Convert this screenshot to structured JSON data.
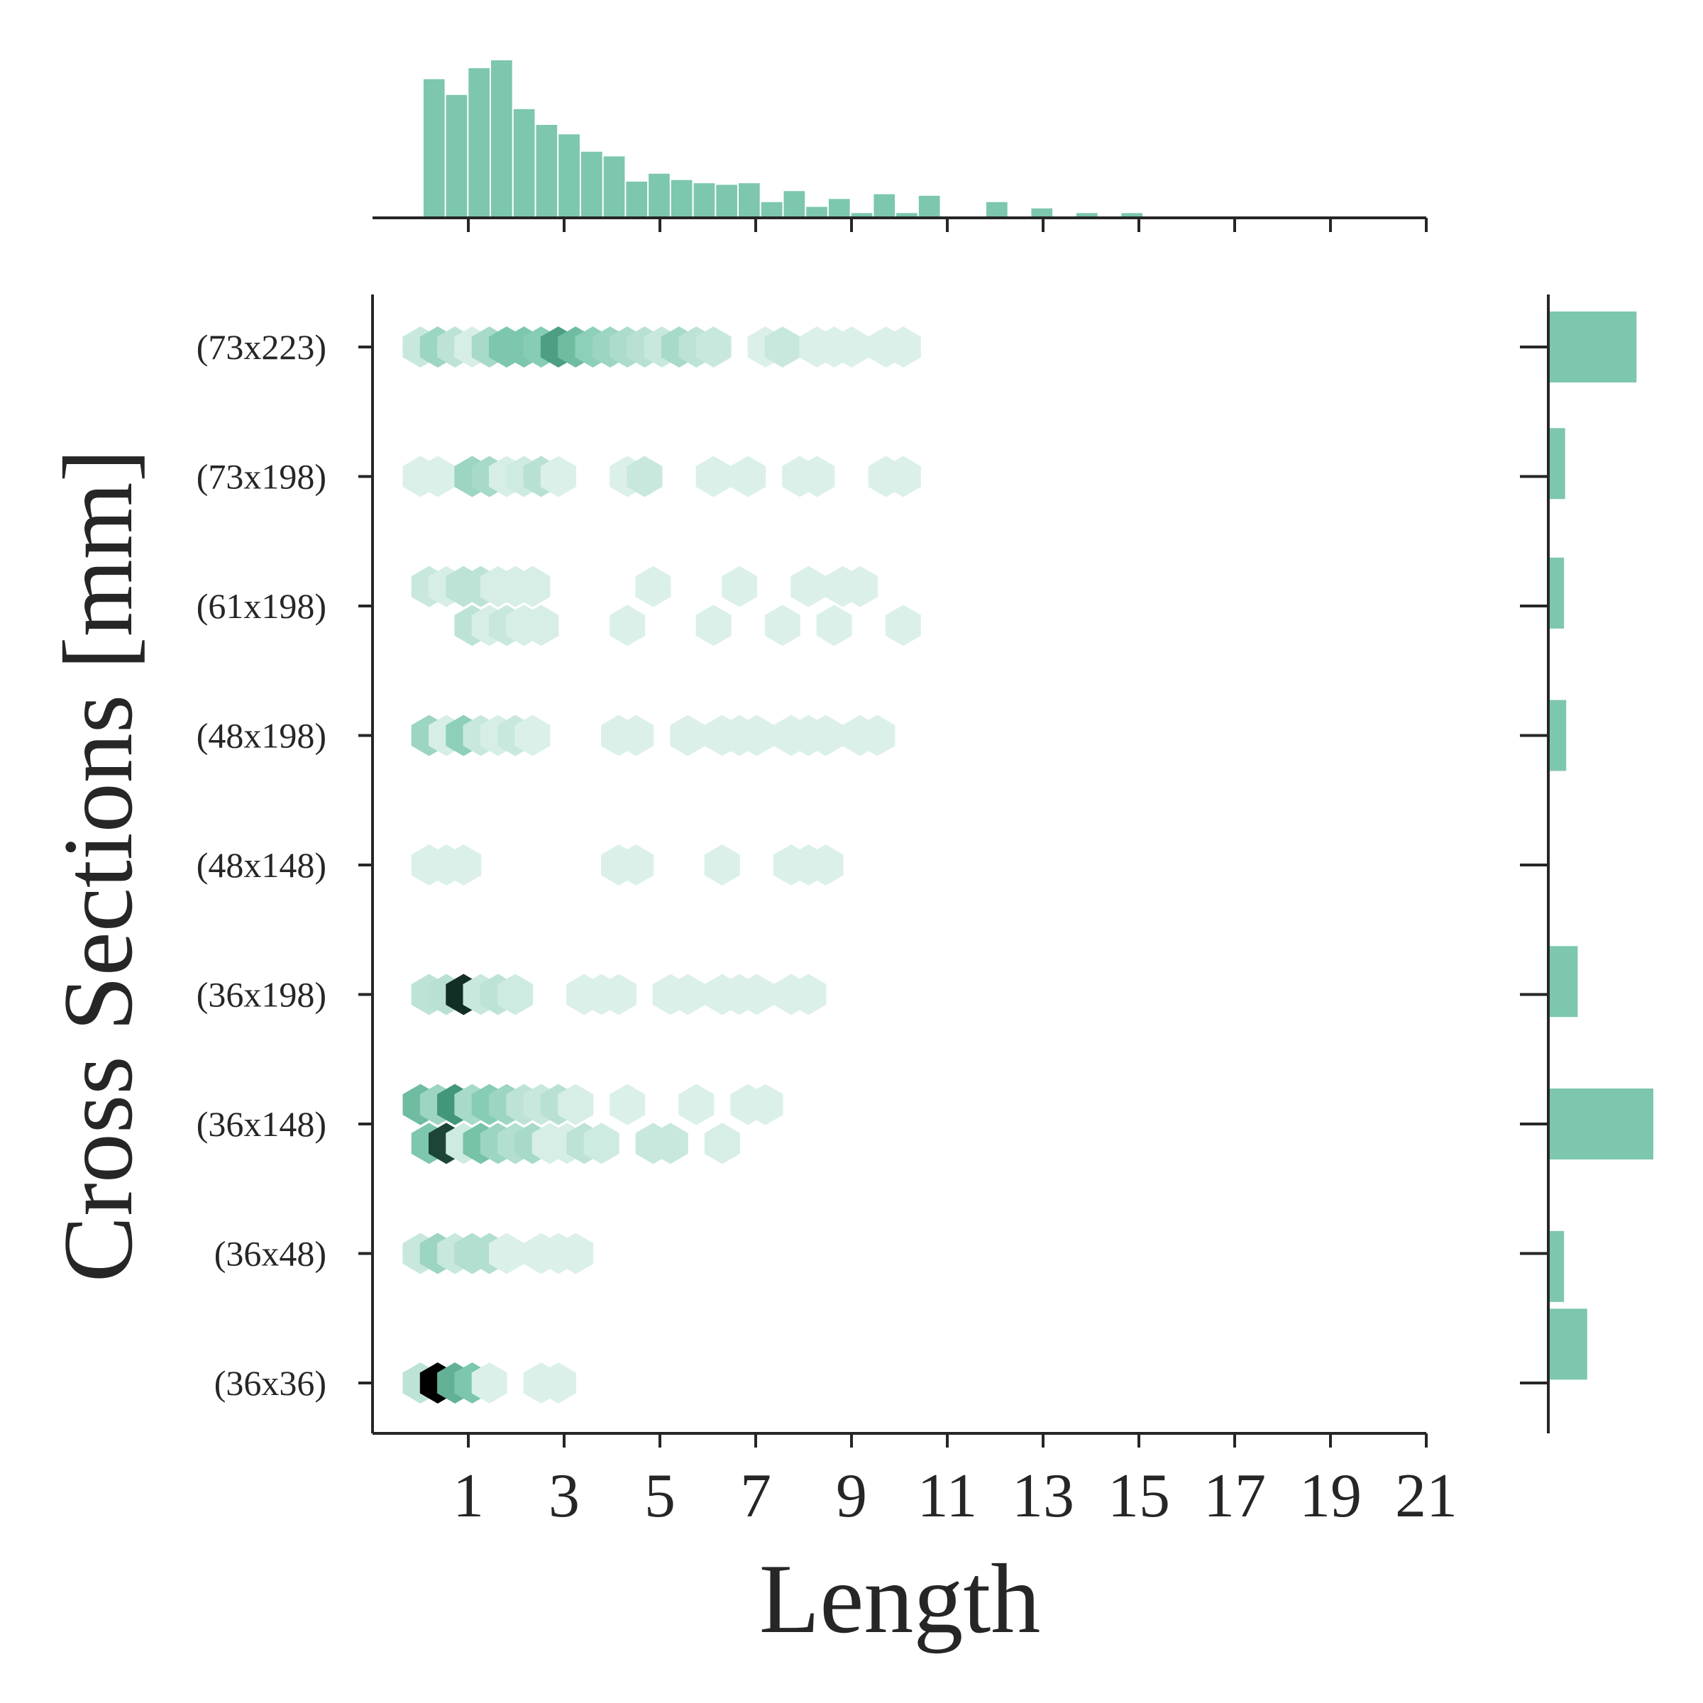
{
  "chart_data": {
    "type": "hexbin_joint",
    "xlabel": "Length",
    "ylabel": "Cross Sections [mm]",
    "xlim": [
      -1.0,
      21.0
    ],
    "x_ticks": [
      1,
      3,
      5,
      7,
      9,
      11,
      13,
      15,
      17,
      19,
      21
    ],
    "y_categories": [
      "(36x36)",
      "(36x48)",
      "(36x148)",
      "(36x198)",
      "(48x148)",
      "(48x198)",
      "(61x198)",
      "(73x198)",
      "(73x223)"
    ],
    "palette": {
      "light": "#e8f6f1",
      "mid": "#7cc7ad",
      "dark_green": "#3a8f72",
      "max": "#000000"
    },
    "cells": [
      {
        "x": 0.0,
        "y": 8.0,
        "d": 0.15
      },
      {
        "x": 0.36,
        "y": 8.0,
        "d": 0.35
      },
      {
        "x": 0.72,
        "y": 8.0,
        "d": 0.2
      },
      {
        "x": 1.08,
        "y": 8.0,
        "d": 0.08
      },
      {
        "x": 1.44,
        "y": 8.0,
        "d": 0.3
      },
      {
        "x": 1.8,
        "y": 8.0,
        "d": 0.5
      },
      {
        "x": 2.16,
        "y": 8.0,
        "d": 0.5
      },
      {
        "x": 2.52,
        "y": 8.0,
        "d": 0.45
      },
      {
        "x": 2.88,
        "y": 8.0,
        "d": 0.68
      },
      {
        "x": 3.24,
        "y": 8.0,
        "d": 0.55
      },
      {
        "x": 3.6,
        "y": 8.0,
        "d": 0.42
      },
      {
        "x": 3.96,
        "y": 8.0,
        "d": 0.35
      },
      {
        "x": 4.32,
        "y": 8.0,
        "d": 0.28
      },
      {
        "x": 4.68,
        "y": 8.0,
        "d": 0.22
      },
      {
        "x": 5.04,
        "y": 8.0,
        "d": 0.15
      },
      {
        "x": 5.4,
        "y": 8.0,
        "d": 0.3
      },
      {
        "x": 5.76,
        "y": 8.0,
        "d": 0.2
      },
      {
        "x": 6.12,
        "y": 8.0,
        "d": 0.15
      },
      {
        "x": 7.2,
        "y": 8.0,
        "d": 0.06
      },
      {
        "x": 7.56,
        "y": 8.0,
        "d": 0.15
      },
      {
        "x": 8.28,
        "y": 8.0,
        "d": 0.06
      },
      {
        "x": 8.64,
        "y": 8.0,
        "d": 0.06
      },
      {
        "x": 9.0,
        "y": 8.0,
        "d": 0.06
      },
      {
        "x": 9.72,
        "y": 8.0,
        "d": 0.06
      },
      {
        "x": 10.08,
        "y": 8.0,
        "d": 0.06
      },
      {
        "x": 0.0,
        "y": 7.0,
        "d": 0.06
      },
      {
        "x": 0.36,
        "y": 7.0,
        "d": 0.06
      },
      {
        "x": 1.08,
        "y": 7.0,
        "d": 0.35
      },
      {
        "x": 1.44,
        "y": 7.0,
        "d": 0.3
      },
      {
        "x": 1.8,
        "y": 7.0,
        "d": 0.08
      },
      {
        "x": 2.16,
        "y": 7.0,
        "d": 0.12
      },
      {
        "x": 2.52,
        "y": 7.0,
        "d": 0.22
      },
      {
        "x": 2.88,
        "y": 7.0,
        "d": 0.06
      },
      {
        "x": 4.32,
        "y": 7.0,
        "d": 0.06
      },
      {
        "x": 4.68,
        "y": 7.0,
        "d": 0.15
      },
      {
        "x": 6.12,
        "y": 7.0,
        "d": 0.06
      },
      {
        "x": 6.84,
        "y": 7.0,
        "d": 0.06
      },
      {
        "x": 7.92,
        "y": 7.0,
        "d": 0.06
      },
      {
        "x": 8.28,
        "y": 7.0,
        "d": 0.06
      },
      {
        "x": 9.72,
        "y": 7.0,
        "d": 0.06
      },
      {
        "x": 10.08,
        "y": 7.0,
        "d": 0.06
      },
      {
        "x": 0.18,
        "y": 6.15,
        "d": 0.15
      },
      {
        "x": 0.54,
        "y": 6.15,
        "d": 0.08
      },
      {
        "x": 0.9,
        "y": 6.15,
        "d": 0.2
      },
      {
        "x": 1.26,
        "y": 6.15,
        "d": 0.2
      },
      {
        "x": 1.62,
        "y": 6.15,
        "d": 0.08
      },
      {
        "x": 1.98,
        "y": 6.15,
        "d": 0.08
      },
      {
        "x": 2.34,
        "y": 6.15,
        "d": 0.08
      },
      {
        "x": 4.86,
        "y": 6.15,
        "d": 0.06
      },
      {
        "x": 6.66,
        "y": 6.15,
        "d": 0.06
      },
      {
        "x": 8.1,
        "y": 6.15,
        "d": 0.06
      },
      {
        "x": 8.82,
        "y": 6.15,
        "d": 0.06
      },
      {
        "x": 9.18,
        "y": 6.15,
        "d": 0.06
      },
      {
        "x": 1.08,
        "y": 5.85,
        "d": 0.2
      },
      {
        "x": 1.44,
        "y": 5.85,
        "d": 0.08
      },
      {
        "x": 1.8,
        "y": 5.85,
        "d": 0.15
      },
      {
        "x": 2.16,
        "y": 5.85,
        "d": 0.08
      },
      {
        "x": 2.52,
        "y": 5.85,
        "d": 0.08
      },
      {
        "x": 4.32,
        "y": 5.85,
        "d": 0.06
      },
      {
        "x": 6.12,
        "y": 5.85,
        "d": 0.06
      },
      {
        "x": 7.56,
        "y": 5.85,
        "d": 0.06
      },
      {
        "x": 8.64,
        "y": 5.85,
        "d": 0.06
      },
      {
        "x": 10.08,
        "y": 5.85,
        "d": 0.06
      },
      {
        "x": 0.18,
        "y": 5.0,
        "d": 0.35
      },
      {
        "x": 0.54,
        "y": 5.0,
        "d": 0.08
      },
      {
        "x": 0.9,
        "y": 5.0,
        "d": 0.42
      },
      {
        "x": 1.26,
        "y": 5.0,
        "d": 0.15
      },
      {
        "x": 1.62,
        "y": 5.0,
        "d": 0.08
      },
      {
        "x": 1.98,
        "y": 5.0,
        "d": 0.15
      },
      {
        "x": 2.34,
        "y": 5.0,
        "d": 0.06
      },
      {
        "x": 4.14,
        "y": 5.0,
        "d": 0.06
      },
      {
        "x": 4.5,
        "y": 5.0,
        "d": 0.06
      },
      {
        "x": 5.58,
        "y": 5.0,
        "d": 0.06
      },
      {
        "x": 6.3,
        "y": 5.0,
        "d": 0.06
      },
      {
        "x": 6.66,
        "y": 5.0,
        "d": 0.06
      },
      {
        "x": 7.02,
        "y": 5.0,
        "d": 0.06
      },
      {
        "x": 7.74,
        "y": 5.0,
        "d": 0.06
      },
      {
        "x": 8.1,
        "y": 5.0,
        "d": 0.06
      },
      {
        "x": 8.46,
        "y": 5.0,
        "d": 0.06
      },
      {
        "x": 9.18,
        "y": 5.0,
        "d": 0.06
      },
      {
        "x": 9.54,
        "y": 5.0,
        "d": 0.06
      },
      {
        "x": 0.18,
        "y": 4.0,
        "d": 0.06
      },
      {
        "x": 0.54,
        "y": 4.0,
        "d": 0.06
      },
      {
        "x": 0.9,
        "y": 4.0,
        "d": 0.06
      },
      {
        "x": 4.14,
        "y": 4.0,
        "d": 0.06
      },
      {
        "x": 4.5,
        "y": 4.0,
        "d": 0.06
      },
      {
        "x": 6.3,
        "y": 4.0,
        "d": 0.06
      },
      {
        "x": 7.74,
        "y": 4.0,
        "d": 0.06
      },
      {
        "x": 8.1,
        "y": 4.0,
        "d": 0.06
      },
      {
        "x": 8.46,
        "y": 4.0,
        "d": 0.06
      },
      {
        "x": 0.18,
        "y": 3.0,
        "d": 0.2
      },
      {
        "x": 0.54,
        "y": 3.0,
        "d": 0.22
      },
      {
        "x": 0.9,
        "y": 3.0,
        "d": 0.92
      },
      {
        "x": 1.26,
        "y": 3.0,
        "d": 0.15
      },
      {
        "x": 1.62,
        "y": 3.0,
        "d": 0.2
      },
      {
        "x": 1.98,
        "y": 3.0,
        "d": 0.12
      },
      {
        "x": 3.42,
        "y": 3.0,
        "d": 0.06
      },
      {
        "x": 3.78,
        "y": 3.0,
        "d": 0.06
      },
      {
        "x": 4.14,
        "y": 3.0,
        "d": 0.06
      },
      {
        "x": 5.22,
        "y": 3.0,
        "d": 0.06
      },
      {
        "x": 5.58,
        "y": 3.0,
        "d": 0.06
      },
      {
        "x": 6.3,
        "y": 3.0,
        "d": 0.06
      },
      {
        "x": 6.66,
        "y": 3.0,
        "d": 0.06
      },
      {
        "x": 7.02,
        "y": 3.0,
        "d": 0.06
      },
      {
        "x": 7.74,
        "y": 3.0,
        "d": 0.06
      },
      {
        "x": 8.1,
        "y": 3.0,
        "d": 0.06
      },
      {
        "x": 0.0,
        "y": 2.15,
        "d": 0.55
      },
      {
        "x": 0.36,
        "y": 2.15,
        "d": 0.35
      },
      {
        "x": 0.72,
        "y": 2.15,
        "d": 0.72
      },
      {
        "x": 1.08,
        "y": 2.15,
        "d": 0.3
      },
      {
        "x": 1.44,
        "y": 2.15,
        "d": 0.45
      },
      {
        "x": 1.8,
        "y": 2.15,
        "d": 0.35
      },
      {
        "x": 2.16,
        "y": 2.15,
        "d": 0.2
      },
      {
        "x": 2.52,
        "y": 2.15,
        "d": 0.15
      },
      {
        "x": 2.88,
        "y": 2.15,
        "d": 0.22
      },
      {
        "x": 3.24,
        "y": 2.15,
        "d": 0.08
      },
      {
        "x": 4.32,
        "y": 2.15,
        "d": 0.06
      },
      {
        "x": 5.76,
        "y": 2.15,
        "d": 0.06
      },
      {
        "x": 6.84,
        "y": 2.15,
        "d": 0.06
      },
      {
        "x": 7.2,
        "y": 2.15,
        "d": 0.06
      },
      {
        "x": 0.18,
        "y": 1.85,
        "d": 0.5
      },
      {
        "x": 0.54,
        "y": 1.85,
        "d": 0.88
      },
      {
        "x": 0.9,
        "y": 1.85,
        "d": 0.12
      },
      {
        "x": 1.26,
        "y": 1.85,
        "d": 0.52
      },
      {
        "x": 1.62,
        "y": 1.85,
        "d": 0.35
      },
      {
        "x": 1.98,
        "y": 1.85,
        "d": 0.25
      },
      {
        "x": 2.34,
        "y": 1.85,
        "d": 0.3
      },
      {
        "x": 2.7,
        "y": 1.85,
        "d": 0.08
      },
      {
        "x": 3.06,
        "y": 1.85,
        "d": 0.08
      },
      {
        "x": 3.42,
        "y": 1.85,
        "d": 0.2
      },
      {
        "x": 3.78,
        "y": 1.85,
        "d": 0.12
      },
      {
        "x": 4.86,
        "y": 1.85,
        "d": 0.15
      },
      {
        "x": 5.22,
        "y": 1.85,
        "d": 0.15
      },
      {
        "x": 6.3,
        "y": 1.85,
        "d": 0.08
      },
      {
        "x": 0.0,
        "y": 1.0,
        "d": 0.15
      },
      {
        "x": 0.36,
        "y": 1.0,
        "d": 0.35
      },
      {
        "x": 0.72,
        "y": 1.0,
        "d": 0.15
      },
      {
        "x": 1.08,
        "y": 1.0,
        "d": 0.25
      },
      {
        "x": 1.44,
        "y": 1.0,
        "d": 0.25
      },
      {
        "x": 1.8,
        "y": 1.0,
        "d": 0.06
      },
      {
        "x": 2.52,
        "y": 1.0,
        "d": 0.06
      },
      {
        "x": 2.88,
        "y": 1.0,
        "d": 0.06
      },
      {
        "x": 3.24,
        "y": 1.0,
        "d": 0.06
      },
      {
        "x": 0.0,
        "y": 0.0,
        "d": 0.2
      },
      {
        "x": 0.36,
        "y": 0.0,
        "d": 1.0
      },
      {
        "x": 0.72,
        "y": 0.0,
        "d": 0.6
      },
      {
        "x": 1.08,
        "y": 0.0,
        "d": 0.5
      },
      {
        "x": 1.44,
        "y": 0.0,
        "d": 0.06
      },
      {
        "x": 2.52,
        "y": 0.0,
        "d": 0.06
      },
      {
        "x": 2.88,
        "y": 0.0,
        "d": 0.06
      }
    ],
    "x_marginal": {
      "bin_start": 0.05,
      "bin_width": 0.47,
      "heights": [
        0.88,
        0.78,
        0.95,
        1.0,
        0.69,
        0.59,
        0.53,
        0.42,
        0.39,
        0.23,
        0.28,
        0.24,
        0.22,
        0.21,
        0.22,
        0.1,
        0.17,
        0.07,
        0.12,
        0.03,
        0.15,
        0.03,
        0.14,
        0.0,
        0.0,
        0.1,
        0.0,
        0.06,
        0.0,
        0.03,
        0.0,
        0.03,
        0.0,
        0.005,
        0.005,
        0.005,
        0.005,
        0.005,
        0.005,
        0.005,
        0.005,
        0.005
      ]
    },
    "y_marginal": [
      {
        "y": 8.0,
        "value": 0.84
      },
      {
        "y": 7.1,
        "value": 0.16
      },
      {
        "y": 6.1,
        "value": 0.15
      },
      {
        "y": 5.0,
        "value": 0.17
      },
      {
        "y": 3.1,
        "value": 0.28
      },
      {
        "y": 2.0,
        "value": 1.0
      },
      {
        "y": 0.9,
        "value": 0.15
      },
      {
        "y": 0.3,
        "value": 0.37
      }
    ]
  }
}
